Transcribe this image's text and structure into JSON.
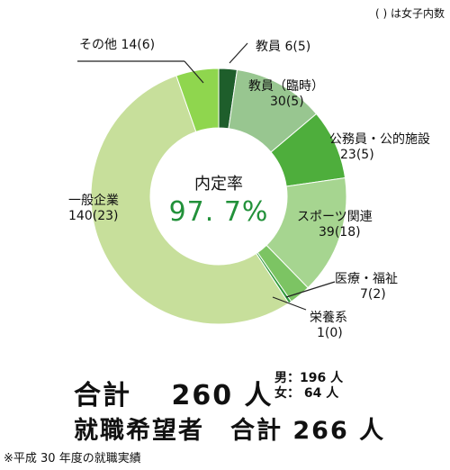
{
  "legend_note": "( ) は女子内数",
  "center": {
    "title": "内定率",
    "value": "97. 7%",
    "value_color": "#22913a"
  },
  "chart_data": {
    "type": "pie",
    "donut": true,
    "slices": [
      {
        "label": "教員",
        "count": "6",
        "girls": "(5)",
        "value": 6,
        "color": "#1e5e2b"
      },
      {
        "label": "教員（臨時）",
        "count": "30",
        "girls": "(5)",
        "value": 30,
        "color": "#98c690"
      },
      {
        "label": "公務員・公的施設",
        "count": "23",
        "girls": "(5)",
        "value": 23,
        "color": "#4eae3c"
      },
      {
        "label": "スポーツ関連",
        "count": "39",
        "girls": "(18)",
        "value": 39,
        "color": "#a6d590"
      },
      {
        "label": "医療・福祉",
        "count": "7",
        "girls": "(2)",
        "value": 7,
        "color": "#7cc463"
      },
      {
        "label": "栄養系",
        "count": "1",
        "girls": "(0)",
        "value": 1,
        "color": "#2f9a3a"
      },
      {
        "label": "一般企業",
        "count": "140",
        "girls": "(23)",
        "value": 140,
        "color": "#c7df9b"
      },
      {
        "label": "その他",
        "count": "14",
        "girls": "(6)",
        "value": 14,
        "color": "#8fd64e"
      }
    ]
  },
  "total": {
    "text": "合計　 260 人"
  },
  "gender": {
    "male": "男：196 人",
    "female": "女：  64 人"
  },
  "hope": {
    "text": "就職希望者　合計 266 人"
  },
  "footnote": "※平成 30 年度の就職実績"
}
